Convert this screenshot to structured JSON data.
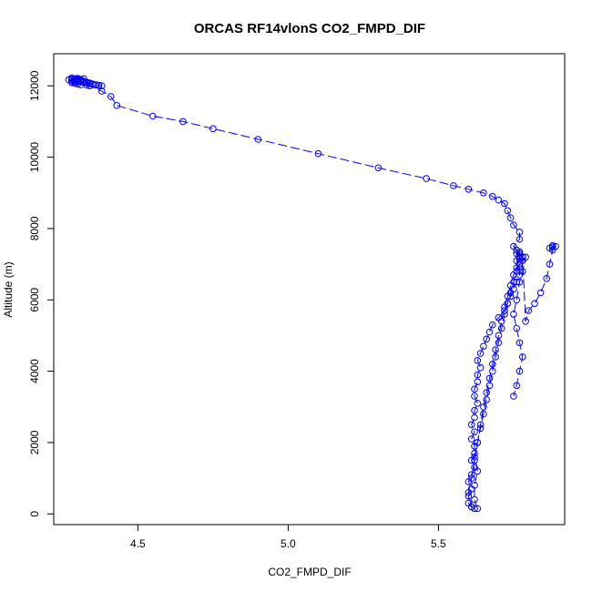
{
  "chart_data": {
    "type": "line",
    "title": "ORCAS RF14vlonS CO2_FMPD_DIF",
    "xlabel": "CO2_FMPD_DIF",
    "ylabel": "Altitude (m)",
    "xlim": [
      4.22,
      5.92
    ],
    "ylim": [
      -300,
      12900
    ],
    "x_ticks": [
      4.5,
      5.0,
      5.5
    ],
    "x_tick_labels": [
      "4.5",
      "5.0",
      "5.5"
    ],
    "y_ticks": [
      0,
      2000,
      4000,
      6000,
      8000,
      10000,
      12000
    ],
    "y_tick_labels": [
      "0",
      "2000",
      "4000",
      "6000",
      "8000",
      "10000",
      "12000"
    ],
    "grid": false,
    "color": "#0000ff",
    "marker": "open-circle",
    "line_style": "dashed",
    "series": [
      {
        "x": [
          5.62,
          5.61,
          5.6,
          5.6,
          5.61,
          5.6,
          5.61,
          5.62,
          5.61,
          5.62,
          5.62,
          5.61,
          5.62,
          5.61,
          5.62,
          5.62,
          5.63,
          5.62,
          5.62,
          5.63,
          5.63,
          5.64,
          5.63,
          5.64,
          5.65,
          5.66,
          5.67,
          5.68,
          5.7,
          5.72,
          5.73,
          5.74,
          5.75,
          5.76,
          5.77,
          5.77,
          5.76,
          5.77,
          5.78,
          5.77,
          5.77,
          5.76,
          5.77,
          5.77,
          5.76,
          5.75,
          5.77,
          5.77,
          5.75,
          5.74,
          5.73,
          5.72,
          5.7,
          5.68,
          5.65,
          5.6,
          5.55,
          5.46,
          5.3,
          5.1,
          4.9,
          4.75,
          4.65,
          4.55,
          4.43,
          4.41,
          4.38,
          4.34,
          4.33,
          4.31,
          4.3,
          4.29,
          4.28,
          4.28,
          4.29,
          4.3,
          4.31,
          4.32,
          4.33,
          4.34,
          4.35,
          4.36,
          4.37,
          4.38,
          4.37,
          4.36,
          4.35,
          4.34,
          4.33,
          4.32,
          4.31,
          4.3,
          4.29,
          4.28,
          4.27,
          4.28,
          4.29,
          4.3,
          4.31,
          4.32,
          4.3,
          4.28
        ],
        "y": [
          150,
          200,
          300,
          500,
          700,
          900,
          1100,
          1300,
          1500,
          1700,
          1900,
          2100,
          2300,
          2500,
          2700,
          2900,
          3100,
          3300,
          3500,
          3700,
          3900,
          4100,
          4300,
          4500,
          4700,
          4900,
          5100,
          5300,
          5500,
          5700,
          5900,
          6100,
          6300,
          6500,
          6700,
          6900,
          7100,
          7150,
          7200,
          7200,
          7250,
          7300,
          7300,
          7350,
          7400,
          7500,
          7700,
          7900,
          8100,
          8300,
          8500,
          8700,
          8800,
          8900,
          9000,
          9100,
          9200,
          9400,
          9700,
          10100,
          10500,
          10800,
          11000,
          11150,
          11450,
          11700,
          11850,
          12000,
          12020,
          12030,
          12050,
          12070,
          12090,
          12100,
          12110,
          12120,
          12110,
          12100,
          12080,
          12060,
          12040,
          12030,
          12020,
          12000,
          12010,
          12030,
          12050,
          12080,
          12100,
          12130,
          12160,
          12180,
          12200,
          12190,
          12170,
          12150,
          12140,
          12160,
          12180,
          12200,
          12210,
          12220
        ]
      },
      {
        "x": [
          5.63,
          5.62,
          5.62,
          5.63,
          5.62,
          5.63,
          5.64,
          5.65,
          5.66,
          5.67,
          5.68,
          5.69,
          5.7,
          5.71,
          5.72,
          5.73,
          5.74,
          5.75,
          5.76,
          5.77,
          5.78,
          5.79,
          5.8,
          5.82,
          5.84,
          5.86,
          5.87,
          5.88,
          5.87,
          5.88,
          5.89,
          5.88
        ],
        "y": [
          150,
          400,
          800,
          1200,
          1600,
          2000,
          2400,
          2800,
          3200,
          3600,
          4000,
          4400,
          4800,
          5200,
          5600,
          5900,
          6200,
          6500,
          6800,
          7000,
          7200,
          5400,
          5700,
          5900,
          6200,
          6600,
          7000,
          7400,
          7450,
          7480,
          7500,
          7520
        ]
      },
      {
        "x": [
          5.61,
          5.6,
          5.61,
          5.62,
          5.63,
          5.64,
          5.65,
          5.66,
          5.67,
          5.68,
          5.69,
          5.7,
          5.71,
          5.72,
          5.73,
          5.74,
          5.75,
          5.76,
          5.77,
          5.78,
          5.79,
          5.78,
          5.77,
          5.76,
          5.75,
          5.76,
          5.77,
          5.78,
          5.77,
          5.76,
          5.75
        ],
        "y": [
          200,
          600,
          1000,
          1500,
          2000,
          2500,
          3000,
          3400,
          3800,
          4200,
          4600,
          5000,
          5400,
          5800,
          6100,
          6400,
          6700,
          6900,
          7000,
          7100,
          7200,
          6800,
          6500,
          6000,
          5600,
          5200,
          4800,
          4400,
          4000,
          3600,
          3300
        ]
      }
    ]
  }
}
